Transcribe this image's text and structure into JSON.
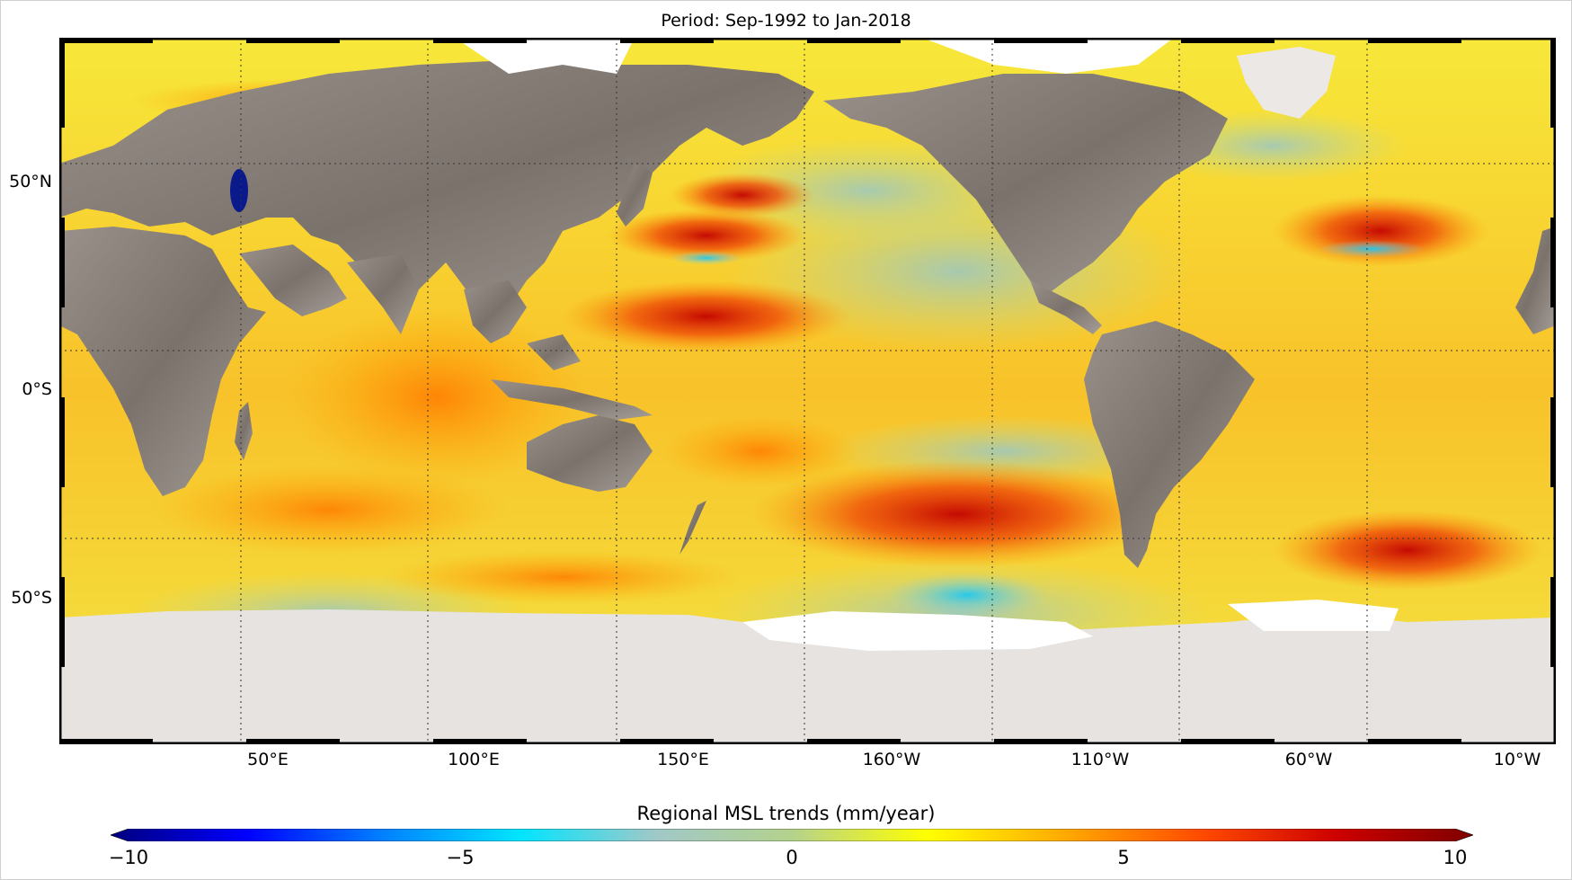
{
  "title": "Period: Sep-1992 to Jan-2018",
  "lat_labels": [
    "50°N",
    "0°S",
    "50°S"
  ],
  "lon_labels": [
    "50°E",
    "100°E",
    "150°E",
    "160°W",
    "110°W",
    "60°W",
    "10°W"
  ],
  "colorbar": {
    "label": "Regional MSL trends (mm/year)",
    "min": -10,
    "max": 10,
    "ticks": [
      "−10",
      "−5",
      "0",
      "5",
      "10"
    ],
    "tick_values": [
      -10,
      -5,
      0,
      5,
      10
    ],
    "colors": [
      "#00007f",
      "#0000ff",
      "#0080ff",
      "#00e5ff",
      "#a0c8c8",
      "#b4d28c",
      "#ffff00",
      "#ffaa00",
      "#ff4b00",
      "#cd0000",
      "#7f0000"
    ]
  },
  "map": {
    "projection": "equirectangular",
    "lon_range": [
      0,
      360
    ],
    "lat_range": [
      -80,
      85
    ],
    "ocean_color": "#f6dc1e",
    "land_color": "#8f8680",
    "ice_color": "#e6e3e0"
  }
}
